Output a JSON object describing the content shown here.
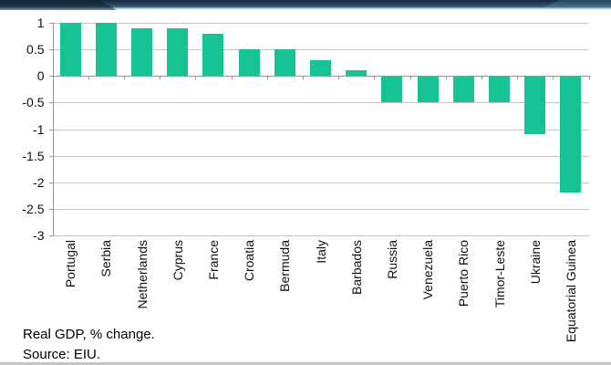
{
  "colors": {
    "bar": "#17c294",
    "gridline": "#c6c6c6",
    "axis": "#969696",
    "band_dark": "#152939",
    "band_mid": "#2a4c69",
    "band_light": "#a6c2d3"
  },
  "chart_data": {
    "type": "bar",
    "title": "",
    "categories": [
      "Portugal",
      "Serbia",
      "Netherlands",
      "Cyprus",
      "France",
      "Croatia",
      "Bermuda",
      "Italy",
      "Barbados",
      "Russia",
      "Venezuela",
      "Puerto Rico",
      "Timor-Leste",
      "Ukraine",
      "Equatorial Guinea"
    ],
    "values": [
      1.0,
      1.0,
      0.9,
      0.9,
      0.8,
      0.5,
      0.5,
      0.3,
      0.1,
      -0.5,
      -0.5,
      -0.5,
      -0.5,
      -1.1,
      -2.2
    ],
    "xlabel": "",
    "ylabel": "",
    "ylim": [
      -3,
      1
    ],
    "yticks": [
      1,
      0.5,
      0,
      -0.5,
      -1,
      -1.5,
      -2,
      -2.5,
      -3
    ],
    "grid": true,
    "legend": "none",
    "bar_color": "#17c294",
    "x_label_rotation": -90
  },
  "footer": {
    "note": "Real GDP, % change.",
    "source": "Source: EIU."
  }
}
